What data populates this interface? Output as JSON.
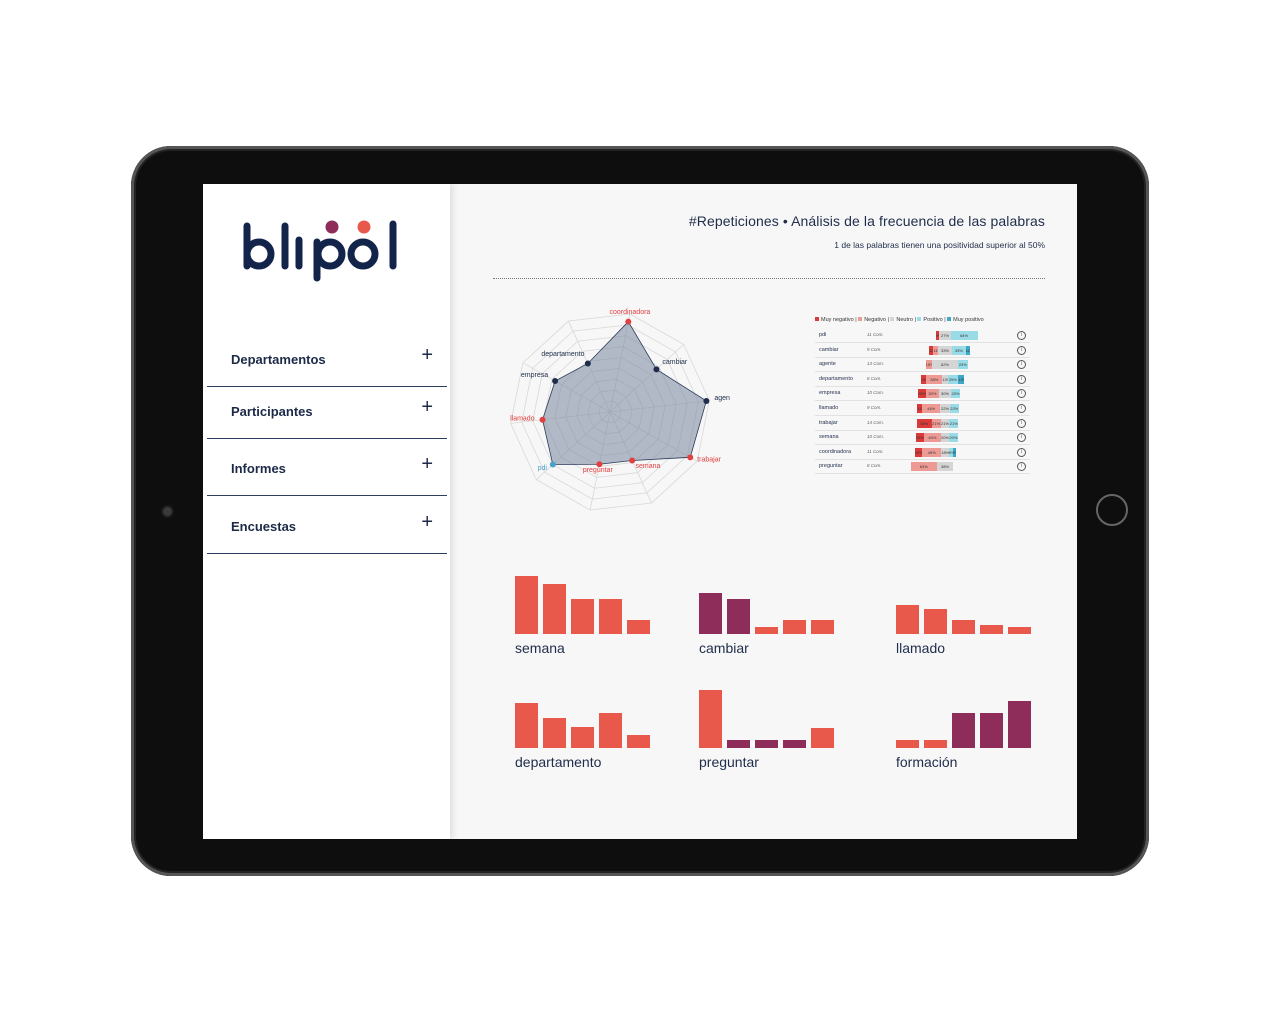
{
  "brand": {
    "logo_text": "blipol",
    "colors": {
      "navy": "#13244a",
      "purple": "#8e2c5a",
      "orange": "#e8594c"
    }
  },
  "sidebar": {
    "items": [
      {
        "label": "Departamentos",
        "icon": "plus-icon"
      },
      {
        "label": "Participantes",
        "icon": "plus-icon"
      },
      {
        "label": "Informes",
        "icon": "plus-icon"
      },
      {
        "label": "Encuestas",
        "icon": "plus-icon"
      }
    ]
  },
  "header": {
    "title": "#Repeticiones • Análisis de la frecuencia de las palabras",
    "subtitle": "1 de las palabras tienen una positividad superior al 50%"
  },
  "radar": {
    "axes": [
      "coordinadora",
      "cambiar",
      "agente",
      "trabajar",
      "semana",
      "preguntar",
      "pdi",
      "llamado",
      "empresa",
      "departamento"
    ],
    "values": [
      0.95,
      0.65,
      1.0,
      0.95,
      0.55,
      0.55,
      0.8,
      0.7,
      0.65,
      0.55
    ],
    "label_colors": [
      "#e04040",
      "#1f2d4a",
      "#1f2d4a",
      "#e04040",
      "#e04040",
      "#e04040",
      "#4aa3c7",
      "#e04040",
      "#1f2d4a",
      "#1f2d4a"
    ]
  },
  "sentiment": {
    "legend": [
      {
        "label": "Muy negativo",
        "color": "#d93a3a"
      },
      {
        "label": "Negativo",
        "color": "#ee9a94"
      },
      {
        "label": "Neutro",
        "color": "#d5d5d5"
      },
      {
        "label": "Positivo",
        "color": "#9adbe8"
      },
      {
        "label": "Muy positivo",
        "color": "#3fa8c8"
      }
    ],
    "rows": [
      {
        "word": "pdi",
        "count": "11 Com.",
        "segs": [
          9,
          0,
          27,
          64,
          0
        ],
        "labels": [
          "9%",
          "",
          "27%",
          "64%",
          ""
        ]
      },
      {
        "word": "cambiar",
        "count": "9 Com.",
        "segs": [
          11,
          11,
          33,
          33,
          11
        ],
        "labels": [
          "11%",
          "11%",
          "33%",
          "33%",
          "11%"
        ]
      },
      {
        "word": "agente",
        "count": "13 Com.",
        "segs": [
          0,
          15,
          62,
          23,
          0
        ],
        "labels": [
          "",
          "15%",
          "62%",
          "23%",
          ""
        ]
      },
      {
        "word": "departamento",
        "count": "8 Com.",
        "segs": [
          13,
          38,
          13,
          25,
          13
        ],
        "labels": [
          "13%",
          "38%",
          "13%",
          "25%",
          "13%"
        ]
      },
      {
        "word": "empresa",
        "count": "10 Com.",
        "segs": [
          20,
          30,
          30,
          20,
          0
        ],
        "labels": [
          "20%",
          "30%",
          "30%",
          "20%",
          ""
        ]
      },
      {
        "word": "llamado",
        "count": "9 Com.",
        "segs": [
          11,
          44,
          22,
          22,
          0
        ],
        "labels": [
          "11%",
          "44%",
          "22%",
          "22%",
          ""
        ]
      },
      {
        "word": "trabajar",
        "count": "14 Com.",
        "segs": [
          36,
          21,
          21,
          21,
          0
        ],
        "labels": [
          "36%",
          "21%",
          "21%",
          "21%",
          ""
        ]
      },
      {
        "word": "semana",
        "count": "10 Com.",
        "segs": [
          20,
          40,
          20,
          20,
          0
        ],
        "labels": [
          "20%",
          "40%",
          "20%",
          "20%",
          ""
        ]
      },
      {
        "word": "coordinadora",
        "count": "11 Com.",
        "segs": [
          18,
          45,
          18,
          9,
          9
        ],
        "labels": [
          "18%",
          "45%",
          "18%",
          "9%",
          "9%"
        ]
      },
      {
        "word": "preguntar",
        "count": "8 Com.",
        "segs": [
          0,
          63,
          38,
          0,
          0
        ],
        "labels": [
          "",
          "63%",
          "38%",
          "",
          ""
        ]
      }
    ]
  },
  "minis": [
    {
      "label": "semana",
      "bars": [
        {
          "v": 58,
          "c": "#e8594c"
        },
        {
          "v": 50,
          "c": "#e8594c"
        },
        {
          "v": 35,
          "c": "#e8594c"
        },
        {
          "v": 35,
          "c": "#e8594c"
        },
        {
          "v": 14,
          "c": "#e8594c"
        }
      ]
    },
    {
      "label": "cambiar",
      "bars": [
        {
          "v": 41,
          "c": "#8e2c5a"
        },
        {
          "v": 35,
          "c": "#8e2c5a"
        },
        {
          "v": 7,
          "c": "#e8594c"
        },
        {
          "v": 14,
          "c": "#e8594c"
        },
        {
          "v": 14,
          "c": "#e8594c"
        }
      ]
    },
    {
      "label": "llamado",
      "bars": [
        {
          "v": 29,
          "c": "#e8594c"
        },
        {
          "v": 25,
          "c": "#e8594c"
        },
        {
          "v": 14,
          "c": "#e8594c"
        },
        {
          "v": 9,
          "c": "#e8594c"
        },
        {
          "v": 7,
          "c": "#e8594c"
        }
      ]
    },
    {
      "label": "departamento",
      "bars": [
        {
          "v": 45,
          "c": "#e8594c"
        },
        {
          "v": 30,
          "c": "#e8594c"
        },
        {
          "v": 21,
          "c": "#e8594c"
        },
        {
          "v": 35,
          "c": "#e8594c"
        },
        {
          "v": 13,
          "c": "#e8594c"
        }
      ]
    },
    {
      "label": "preguntar",
      "bars": [
        {
          "v": 58,
          "c": "#e8594c"
        },
        {
          "v": 8,
          "c": "#8e2c5a"
        },
        {
          "v": 8,
          "c": "#8e2c5a"
        },
        {
          "v": 8,
          "c": "#8e2c5a"
        },
        {
          "v": 20,
          "c": "#e8594c"
        }
      ]
    },
    {
      "label": "formación",
      "bars": [
        {
          "v": 8,
          "c": "#e8594c"
        },
        {
          "v": 8,
          "c": "#e8594c"
        },
        {
          "v": 35,
          "c": "#8e2c5a"
        },
        {
          "v": 35,
          "c": "#8e2c5a"
        },
        {
          "v": 47,
          "c": "#8e2c5a"
        }
      ]
    }
  ]
}
